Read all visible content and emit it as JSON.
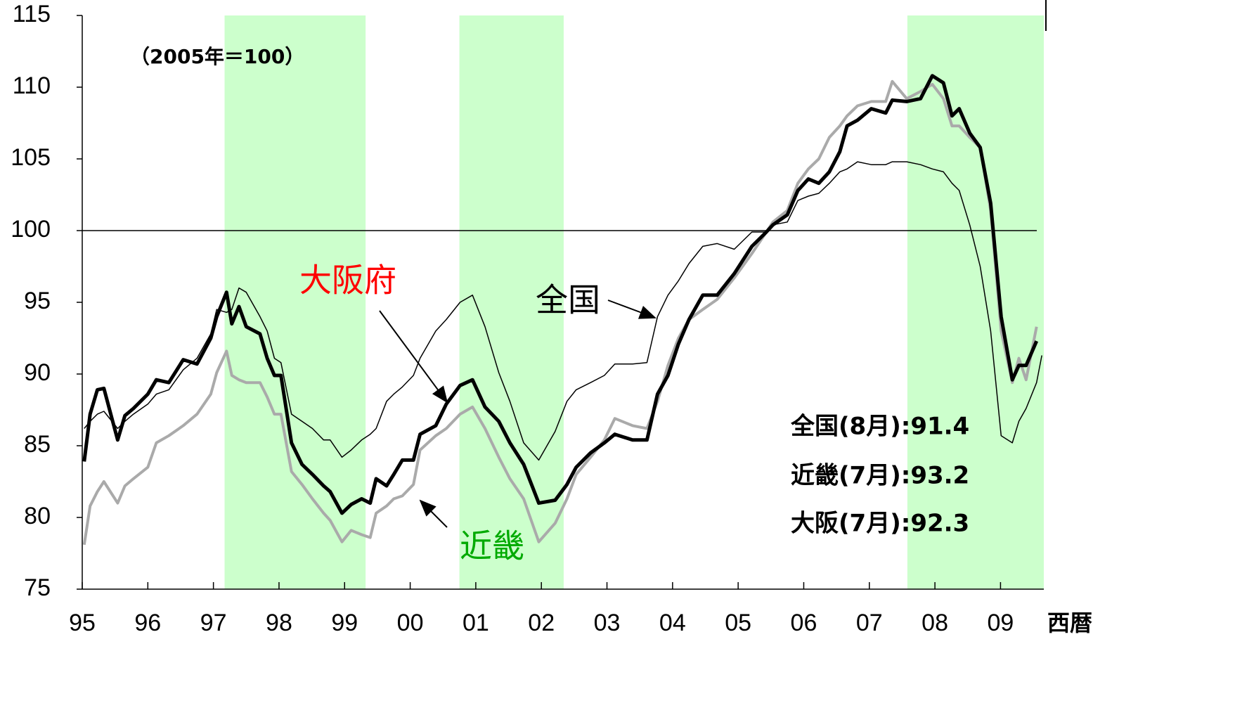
{
  "chart_data": {
    "type": "line",
    "note": "（2005年＝100）",
    "x_axis_label": "西暦",
    "xlim": [
      1995,
      2009.66
    ],
    "ylim": [
      75,
      115
    ],
    "yticks": [
      75,
      80,
      85,
      90,
      95,
      100,
      105,
      110,
      115
    ],
    "xticks": [
      {
        "value": 1995,
        "label": "95"
      },
      {
        "value": 1996,
        "label": "96"
      },
      {
        "value": 1997,
        "label": "97"
      },
      {
        "value": 1998,
        "label": "98"
      },
      {
        "value": 1999,
        "label": "99"
      },
      {
        "value": 2000,
        "label": "00"
      },
      {
        "value": 2001,
        "label": "01"
      },
      {
        "value": 2002,
        "label": "02"
      },
      {
        "value": 2003,
        "label": "03"
      },
      {
        "value": 2004,
        "label": "04"
      },
      {
        "value": 2005,
        "label": "05"
      },
      {
        "value": 2006,
        "label": "06"
      },
      {
        "value": 2007,
        "label": "07"
      },
      {
        "value": 2008,
        "label": "08"
      },
      {
        "value": 2009,
        "label": "09"
      }
    ],
    "reference_line": 100,
    "shaded_periods": [
      [
        1997.17,
        1999.32
      ],
      [
        2000.75,
        2002.34
      ],
      [
        2007.58,
        2009.66
      ]
    ],
    "shade_color": "#ccffcc",
    "x": [
      1995.03,
      1995.12,
      1995.23,
      1995.33,
      1995.54,
      1995.65,
      1995.78,
      1996.0,
      1996.13,
      1996.32,
      1996.54,
      1996.75,
      1996.96,
      1997.05,
      1997.2,
      1997.28,
      1997.39,
      1997.5,
      1997.71,
      1997.82,
      1997.93,
      1998.03,
      1998.19,
      1998.35,
      1998.51,
      1998.68,
      1998.78,
      1998.96,
      1999.1,
      1999.26,
      1999.39,
      1999.48,
      1999.64,
      1999.75,
      1999.88,
      2000.05,
      2000.15,
      2000.39,
      2000.55,
      2000.76,
      2000.95,
      2001.14,
      2001.35,
      2001.52,
      2001.73,
      2001.96,
      2002.21,
      2002.39,
      2002.53,
      2002.75,
      2002.96,
      2003.12,
      2003.39,
      2003.61,
      2003.77,
      2003.93,
      2004.09,
      2004.25,
      2004.46,
      2004.68,
      2004.94,
      2005.21,
      2005.43,
      2005.53,
      2005.75,
      2005.91,
      2006.07,
      2006.23,
      2006.39,
      2006.55,
      2006.66,
      2006.82,
      2007.03,
      2007.25,
      2007.35,
      2007.57,
      2007.78,
      2007.96,
      2008.13,
      2008.26,
      2008.37,
      2008.53,
      2008.69,
      2008.85,
      2009.01,
      2009.18,
      2009.28,
      2009.39,
      2009.55,
      2009.63
    ],
    "series": [
      {
        "name": "全国",
        "color": "#000000",
        "width": 1.5,
        "values": [
          86.2,
          86.7,
          87.2,
          87.4,
          86.2,
          86.7,
          87.2,
          87.9,
          88.6,
          88.9,
          90.3,
          91.1,
          92.8,
          94.5,
          94.3,
          94.5,
          96.0,
          95.7,
          94.0,
          93.0,
          91.1,
          90.8,
          87.2,
          86.7,
          86.2,
          85.4,
          85.4,
          84.2,
          84.7,
          85.4,
          85.8,
          86.2,
          88.1,
          88.6,
          89.1,
          89.9,
          91.1,
          93.0,
          93.8,
          95.0,
          95.5,
          93.3,
          90.1,
          88.1,
          85.2,
          84.0,
          86.0,
          88.1,
          88.9,
          89.4,
          89.9,
          90.7,
          90.7,
          90.8,
          94.0,
          95.5,
          96.5,
          97.7,
          98.9,
          99.1,
          98.7,
          99.9,
          99.9,
          100.4,
          100.6,
          102.1,
          102.4,
          102.6,
          103.3,
          104.1,
          104.3,
          104.8,
          104.6,
          104.6,
          104.8,
          104.8,
          104.6,
          104.3,
          104.1,
          103.3,
          102.8,
          100.4,
          97.5,
          93.0,
          85.7,
          85.2,
          86.7,
          87.6,
          89.4,
          91.3
        ]
      },
      {
        "name": "近畿",
        "color": "#aaaaaa",
        "width": 4,
        "values": [
          78.1,
          80.8,
          81.8,
          82.5,
          81.0,
          82.2,
          82.7,
          83.5,
          85.2,
          85.7,
          86.4,
          87.2,
          88.6,
          90.1,
          91.6,
          89.9,
          89.6,
          89.4,
          89.4,
          88.4,
          87.2,
          87.2,
          83.2,
          82.3,
          81.3,
          80.3,
          79.8,
          78.3,
          79.1,
          78.8,
          78.6,
          80.3,
          80.8,
          81.3,
          81.5,
          82.3,
          84.7,
          85.7,
          86.2,
          87.2,
          87.7,
          86.2,
          84.2,
          82.7,
          81.3,
          78.3,
          79.6,
          81.3,
          83.0,
          84.2,
          85.4,
          86.9,
          86.4,
          86.2,
          88.1,
          90.6,
          92.5,
          93.8,
          94.5,
          95.2,
          96.7,
          98.4,
          99.9,
          100.6,
          101.4,
          103.3,
          104.3,
          105.0,
          106.5,
          107.3,
          108.0,
          108.7,
          109.0,
          109.0,
          110.4,
          109.2,
          109.7,
          110.2,
          109.2,
          107.3,
          107.3,
          106.5,
          105.8,
          101.4,
          93.0,
          89.4,
          91.1,
          89.6,
          93.3,
          null
        ]
      },
      {
        "name": "大阪府",
        "color": "#000000",
        "width": 5,
        "values": [
          83.9,
          87.2,
          88.9,
          89.0,
          85.4,
          87.1,
          87.6,
          88.6,
          89.6,
          89.4,
          91.0,
          90.7,
          92.5,
          94.0,
          95.7,
          93.5,
          94.7,
          93.3,
          92.8,
          91.1,
          89.9,
          89.9,
          85.2,
          83.7,
          83.0,
          82.2,
          81.8,
          80.3,
          80.9,
          81.3,
          81.0,
          82.7,
          82.2,
          83.0,
          84.0,
          84.0,
          85.8,
          86.4,
          87.9,
          89.2,
          89.6,
          87.7,
          86.7,
          85.2,
          83.7,
          81.0,
          81.2,
          82.3,
          83.5,
          84.5,
          85.2,
          85.8,
          85.4,
          85.4,
          88.6,
          89.9,
          92.1,
          93.8,
          95.5,
          95.5,
          97.0,
          98.9,
          99.9,
          100.4,
          101.1,
          102.8,
          103.6,
          103.3,
          104.1,
          105.5,
          107.3,
          107.7,
          108.5,
          108.2,
          109.1,
          109.0,
          109.2,
          110.8,
          110.3,
          108.0,
          108.5,
          106.8,
          105.8,
          101.9,
          94.0,
          89.6,
          90.6,
          90.6,
          92.3,
          null
        ]
      }
    ],
    "line_labels": [
      {
        "text": "大阪府",
        "color": "#ff0000"
      },
      {
        "text": "全国",
        "color": "#000000"
      },
      {
        "text": "近畿",
        "color": "#00aa00"
      }
    ],
    "summary": [
      "全国(8月):91.4",
      "近畿(7月):93.2",
      "大阪(7月):92.3"
    ]
  }
}
